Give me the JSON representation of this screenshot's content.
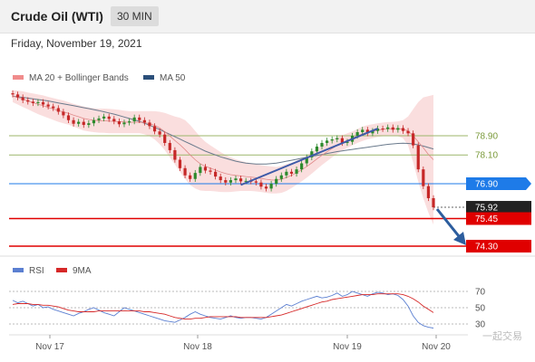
{
  "header": {
    "title": "Crude Oil (WTI)",
    "timeframe": "30 MIN"
  },
  "date": "Friday, November 19, 2021",
  "legend": {
    "ma20": "MA 20 + Bollinger Bands",
    "ma50": "MA 50",
    "rsi": "RSI",
    "rsi_ma": "9MA"
  },
  "watermark": "一起交易",
  "colors": {
    "bollinger": "#f5b5b5",
    "ma50": "#6a7a8c",
    "up": "#2c8a2c",
    "down": "#c62828",
    "trend": "#3d5aa8",
    "resistance": "#9cb56a",
    "pivot": "#1e7be8",
    "support": "#e00000",
    "last": "#222222"
  },
  "chart_data": {
    "type": "candlestick",
    "x_ticks": [
      "Nov 17",
      "Nov 18",
      "Nov 19",
      "Nov 20"
    ],
    "levels": [
      {
        "label": "78.90",
        "value": 78.9,
        "kind": "resistance"
      },
      {
        "label": "78.10",
        "value": 78.1,
        "kind": "resistance"
      },
      {
        "label": "76.90",
        "value": 76.9,
        "kind": "pivot"
      },
      {
        "label": "75.92",
        "value": 75.92,
        "kind": "last"
      },
      {
        "label": "75.45",
        "value": 75.45,
        "kind": "support"
      },
      {
        "label": "74.30",
        "value": 74.3,
        "kind": "support"
      }
    ],
    "close": [
      80.62,
      80.5,
      80.38,
      80.32,
      80.26,
      80.3,
      80.2,
      80.12,
      80.05,
      79.9,
      79.75,
      79.55,
      79.4,
      79.48,
      79.35,
      79.42,
      79.55,
      79.62,
      79.7,
      79.6,
      79.5,
      79.38,
      79.45,
      79.5,
      79.66,
      79.55,
      79.45,
      79.3,
      79.08,
      78.95,
      78.6,
      78.3,
      77.9,
      77.55,
      77.25,
      77.1,
      77.35,
      77.6,
      77.45,
      77.4,
      77.2,
      77.05,
      76.95,
      77.05,
      77.12,
      77.0,
      77.02,
      77.0,
      76.95,
      76.78,
      76.7,
      76.9,
      77.1,
      77.25,
      77.4,
      77.32,
      77.5,
      77.75,
      78.0,
      78.25,
      78.45,
      78.6,
      78.7,
      78.75,
      78.8,
      78.6,
      78.65,
      78.9,
      79.05,
      79.15,
      79.0,
      79.1,
      79.2,
      79.18,
      79.25,
      79.15,
      79.22,
      79.1,
      79.0,
      78.5,
      77.5,
      76.8,
      76.3,
      75.92
    ],
    "bollinger_upper": [
      80.8,
      80.78,
      80.75,
      80.7,
      80.66,
      80.62,
      80.58,
      80.52,
      80.47,
      80.42,
      80.37,
      80.3,
      80.23,
      80.18,
      80.12,
      80.08,
      80.05,
      80.03,
      80.03,
      80.02,
      80.0,
      79.98,
      79.95,
      79.92,
      79.92,
      79.93,
      79.93,
      79.93,
      79.92,
      79.9,
      79.85,
      79.78,
      79.7,
      79.65,
      79.55,
      79.35,
      79.1,
      78.85,
      78.65,
      78.5,
      78.36,
      78.22,
      78.1,
      78.0,
      77.92,
      77.85,
      77.8,
      77.76,
      77.72,
      77.68,
      77.65,
      77.62,
      77.6,
      77.65,
      77.72,
      77.78,
      77.86,
      77.96,
      78.08,
      78.22,
      78.36,
      78.5,
      78.62,
      78.74,
      78.84,
      78.92,
      79.0,
      79.08,
      79.18,
      79.28,
      79.34,
      79.38,
      79.42,
      79.45,
      79.47,
      79.48,
      79.5,
      79.55,
      79.7,
      80.0,
      80.3,
      80.5,
      80.55,
      80.6
    ],
    "bollinger_lower": [
      80.3,
      80.2,
      80.1,
      80.0,
      79.9,
      79.8,
      79.72,
      79.64,
      79.56,
      79.48,
      79.42,
      79.36,
      79.28,
      79.2,
      79.12,
      79.08,
      79.05,
      79.03,
      79.02,
      79.0,
      79.0,
      79.0,
      79.0,
      79.0,
      79.0,
      79.0,
      78.96,
      78.88,
      78.75,
      78.55,
      78.3,
      78.0,
      77.7,
      77.4,
      77.1,
      76.85,
      76.7,
      76.62,
      76.6,
      76.6,
      76.58,
      76.56,
      76.55,
      76.56,
      76.58,
      76.6,
      76.6,
      76.6,
      76.58,
      76.56,
      76.52,
      76.5,
      76.5,
      76.52,
      76.6,
      76.72,
      76.86,
      77.0,
      77.15,
      77.32,
      77.5,
      77.68,
      77.84,
      78.0,
      78.15,
      78.28,
      78.4,
      78.5,
      78.6,
      78.68,
      78.75,
      78.8,
      78.85,
      78.88,
      78.9,
      78.9,
      78.88,
      78.8,
      78.5,
      77.8,
      77.0,
      76.3,
      75.7,
      75.2
    ],
    "ma50": [
      80.55,
      80.52,
      80.5,
      80.47,
      80.44,
      80.41,
      80.38,
      80.35,
      80.31,
      80.27,
      80.23,
      80.19,
      80.15,
      80.11,
      80.07,
      80.03,
      79.99,
      79.95,
      79.9,
      79.85,
      79.8,
      79.74,
      79.68,
      79.62,
      79.56,
      79.5,
      79.42,
      79.34,
      79.25,
      79.16,
      79.06,
      78.96,
      78.86,
      78.76,
      78.66,
      78.56,
      78.46,
      78.36,
      78.26,
      78.18,
      78.1,
      78.02,
      77.96,
      77.9,
      77.84,
      77.8,
      77.76,
      77.74,
      77.72,
      77.72,
      77.72,
      77.74,
      77.76,
      77.8,
      77.84,
      77.88,
      77.92,
      77.96,
      78.0,
      78.04,
      78.08,
      78.12,
      78.16,
      78.2,
      78.24,
      78.27,
      78.3,
      78.33,
      78.36,
      78.39,
      78.42,
      78.45,
      78.48,
      78.51,
      78.54,
      78.56,
      78.58,
      78.59,
      78.58,
      78.56,
      78.52,
      78.47,
      78.41,
      78.35
    ],
    "rsi": [
      59,
      56,
      58,
      55,
      52,
      54,
      50,
      51,
      48,
      46,
      44,
      42,
      40,
      43,
      45,
      48,
      50,
      47,
      44,
      42,
      40,
      45,
      50,
      48,
      46,
      44,
      42,
      40,
      38,
      36,
      34,
      33,
      32,
      35,
      38,
      42,
      45,
      42,
      40,
      38,
      37,
      36,
      38,
      40,
      38,
      37,
      38,
      38,
      37,
      36,
      38,
      42,
      46,
      50,
      54,
      52,
      55,
      58,
      60,
      62,
      64,
      62,
      63,
      65,
      68,
      64,
      66,
      70,
      68,
      66,
      64,
      67,
      69,
      68,
      66,
      67,
      65,
      60,
      52,
      40,
      32,
      28,
      26,
      25
    ],
    "rsi_ma": [
      54,
      55,
      55,
      55,
      54,
      54,
      53,
      53,
      52,
      51,
      49,
      47,
      46,
      45,
      45,
      45,
      45,
      46,
      46,
      46,
      46,
      46,
      46,
      46,
      46,
      46,
      45,
      45,
      44,
      43,
      42,
      40,
      38,
      37,
      36,
      36,
      37,
      37,
      38,
      39,
      39,
      39,
      39,
      39,
      39,
      38,
      38,
      38,
      38,
      38,
      38,
      39,
      40,
      41,
      43,
      45,
      47,
      49,
      51,
      53,
      55,
      57,
      58,
      60,
      61,
      62,
      63,
      64,
      65,
      66,
      66,
      66,
      67,
      67,
      67,
      67,
      67,
      66,
      64,
      61,
      57,
      52,
      48,
      44
    ],
    "trend_lines": [
      {
        "x1": 45,
        "y1": 76.85,
        "x2": 72,
        "y2": 79.2
      }
    ],
    "rsi_ticks": [
      70,
      50,
      30
    ]
  }
}
